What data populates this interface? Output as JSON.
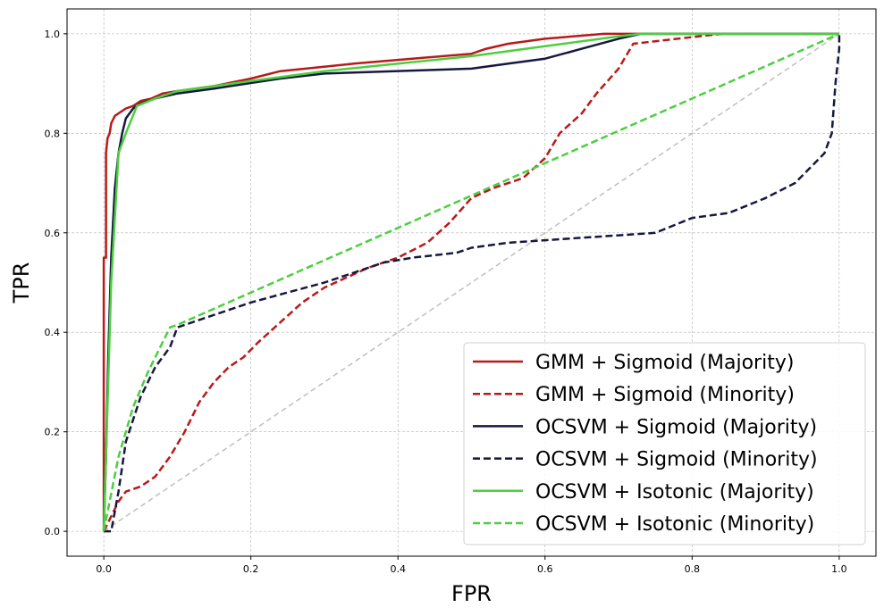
{
  "chart_data": {
    "type": "line",
    "title": "",
    "xlabel": "FPR",
    "ylabel": "TPR",
    "xlim": [
      -0.05,
      1.05
    ],
    "ylim": [
      -0.05,
      1.05
    ],
    "xticks": [
      0.0,
      0.2,
      0.4,
      0.6,
      0.8,
      1.0
    ],
    "yticks": [
      0.0,
      0.2,
      0.4,
      0.6,
      0.8,
      1.0
    ],
    "xtick_labels": [
      "0.0",
      "0.2",
      "0.4",
      "0.6",
      "0.8",
      "1.0"
    ],
    "ytick_labels": [
      "0.0",
      "0.2",
      "0.4",
      "0.6",
      "0.8",
      "1.0"
    ],
    "grid": true,
    "legend_position": "bottom-right",
    "reference_line": {
      "x": [
        0,
        1
      ],
      "y": [
        0,
        1
      ],
      "color": "#bfbfbf",
      "style": "dashed"
    },
    "series": [
      {
        "name": "GMM + Sigmoid (Majority)",
        "color": "#b81a1a",
        "style": "solid",
        "x": [
          0,
          0,
          0.003,
          0.003,
          0.005,
          0.008,
          0.01,
          0.015,
          0.02,
          0.03,
          0.04,
          0.05,
          0.065,
          0.08,
          0.1,
          0.15,
          0.2,
          0.24,
          0.34,
          0.5,
          0.52,
          0.55,
          0.6,
          0.68,
          0.7,
          1.0
        ],
        "y": [
          0,
          0.55,
          0.55,
          0.76,
          0.79,
          0.8,
          0.82,
          0.835,
          0.84,
          0.85,
          0.855,
          0.865,
          0.87,
          0.88,
          0.885,
          0.895,
          0.91,
          0.925,
          0.94,
          0.96,
          0.97,
          0.98,
          0.99,
          1.0,
          1.0,
          1.0
        ]
      },
      {
        "name": "GMM + Sigmoid (Minority)",
        "color": "#b81a1a",
        "style": "dashed",
        "x": [
          0,
          0.01,
          0.02,
          0.03,
          0.05,
          0.07,
          0.09,
          0.11,
          0.13,
          0.15,
          0.17,
          0.19,
          0.21,
          0.24,
          0.27,
          0.3,
          0.33,
          0.36,
          0.4,
          0.44,
          0.47,
          0.5,
          0.53,
          0.57,
          0.6,
          0.62,
          0.65,
          0.67,
          0.7,
          0.72,
          0.78,
          0.84,
          1.0
        ],
        "y": [
          0,
          0.03,
          0.06,
          0.08,
          0.09,
          0.11,
          0.15,
          0.2,
          0.26,
          0.3,
          0.33,
          0.35,
          0.38,
          0.42,
          0.46,
          0.49,
          0.51,
          0.53,
          0.55,
          0.58,
          0.62,
          0.67,
          0.69,
          0.71,
          0.75,
          0.8,
          0.84,
          0.88,
          0.93,
          0.98,
          0.99,
          1.0,
          1.0
        ]
      },
      {
        "name": "OCSVM + Sigmoid (Majority)",
        "color": "#16183f",
        "style": "solid",
        "x": [
          0,
          0.003,
          0.006,
          0.01,
          0.015,
          0.02,
          0.025,
          0.03,
          0.04,
          0.05,
          0.07,
          0.1,
          0.15,
          0.24,
          0.3,
          0.5,
          0.55,
          0.6,
          0.65,
          0.7,
          0.73,
          1.0
        ],
        "y": [
          0,
          0.15,
          0.35,
          0.55,
          0.69,
          0.76,
          0.8,
          0.83,
          0.85,
          0.86,
          0.87,
          0.88,
          0.89,
          0.91,
          0.92,
          0.93,
          0.94,
          0.95,
          0.97,
          0.99,
          1.0,
          1.0
        ]
      },
      {
        "name": "OCSVM + Sigmoid (Minority)",
        "color": "#16183f",
        "style": "dashed",
        "x": [
          0,
          0.01,
          0.02,
          0.03,
          0.05,
          0.07,
          0.09,
          0.1,
          0.14,
          0.2,
          0.25,
          0.3,
          0.34,
          0.38,
          0.42,
          0.48,
          0.5,
          0.55,
          0.6,
          0.65,
          0.7,
          0.75,
          0.8,
          0.85,
          0.9,
          0.94,
          0.96,
          0.98,
          0.99,
          0.995,
          1.0,
          1.0
        ],
        "y": [
          0,
          0.0,
          0.08,
          0.18,
          0.27,
          0.33,
          0.37,
          0.41,
          0.43,
          0.46,
          0.48,
          0.5,
          0.52,
          0.54,
          0.55,
          0.56,
          0.57,
          0.58,
          0.585,
          0.59,
          0.595,
          0.6,
          0.63,
          0.64,
          0.67,
          0.7,
          0.73,
          0.76,
          0.8,
          0.9,
          0.97,
          1.0
        ]
      },
      {
        "name": "OCSVM + Isotonic (Majority)",
        "color": "#4ccf3f",
        "style": "solid",
        "x": [
          0,
          0.01,
          0.02,
          0.03,
          0.045,
          0.07,
          0.1,
          0.15,
          0.2,
          0.3,
          0.4,
          0.5,
          0.6,
          0.7,
          0.73,
          1.0
        ],
        "y": [
          0,
          0.5,
          0.76,
          0.8,
          0.855,
          0.87,
          0.885,
          0.895,
          0.905,
          0.925,
          0.94,
          0.955,
          0.975,
          0.995,
          1.0,
          1.0
        ]
      },
      {
        "name": "OCSVM + Isotonic (Minority)",
        "color": "#4ccf3f",
        "style": "dashed",
        "x": [
          0,
          0.02,
          0.04,
          0.06,
          0.09,
          0.1,
          1.0
        ],
        "y": [
          0,
          0.15,
          0.25,
          0.32,
          0.41,
          0.415,
          1.0
        ]
      }
    ]
  }
}
